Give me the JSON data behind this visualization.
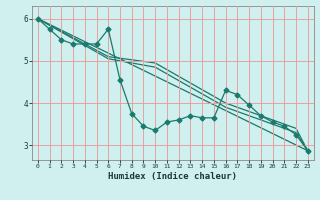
{
  "xlabel": "Humidex (Indice chaleur)",
  "ylabel": "",
  "bg_color": "#cff0ee",
  "line_color": "#1a7a6e",
  "grid_color": "#e8a0a0",
  "xlim": [
    -0.5,
    23.5
  ],
  "ylim": [
    2.65,
    6.3
  ],
  "xticks": [
    0,
    1,
    2,
    3,
    4,
    5,
    6,
    7,
    8,
    9,
    10,
    11,
    12,
    13,
    14,
    15,
    16,
    17,
    18,
    19,
    20,
    21,
    22,
    23
  ],
  "yticks": [
    3,
    4,
    5,
    6
  ],
  "line1_x": [
    0,
    1,
    2,
    3,
    4,
    5,
    6,
    7,
    8,
    9,
    10,
    11,
    12,
    13,
    14,
    15,
    16,
    17,
    18,
    19,
    20,
    21,
    22,
    23
  ],
  "line1_y": [
    6.0,
    5.75,
    5.5,
    5.4,
    5.4,
    5.4,
    5.75,
    4.55,
    3.75,
    3.45,
    3.35,
    3.55,
    3.6,
    3.7,
    3.65,
    3.65,
    4.3,
    4.2,
    3.95,
    3.7,
    3.55,
    3.45,
    3.25,
    2.87
  ],
  "line2_x": [
    0,
    6,
    10,
    16,
    22,
    23
  ],
  "line2_y": [
    6.0,
    5.05,
    4.85,
    3.9,
    3.3,
    2.87
  ],
  "line3_x": [
    0,
    6,
    10,
    16,
    22,
    23
  ],
  "line3_y": [
    6.0,
    5.1,
    4.95,
    4.0,
    3.4,
    2.87
  ],
  "line4_x": [
    0,
    23
  ],
  "line4_y": [
    6.0,
    2.87
  ],
  "marker": "D",
  "markersize": 2.5,
  "linewidth": 0.9
}
